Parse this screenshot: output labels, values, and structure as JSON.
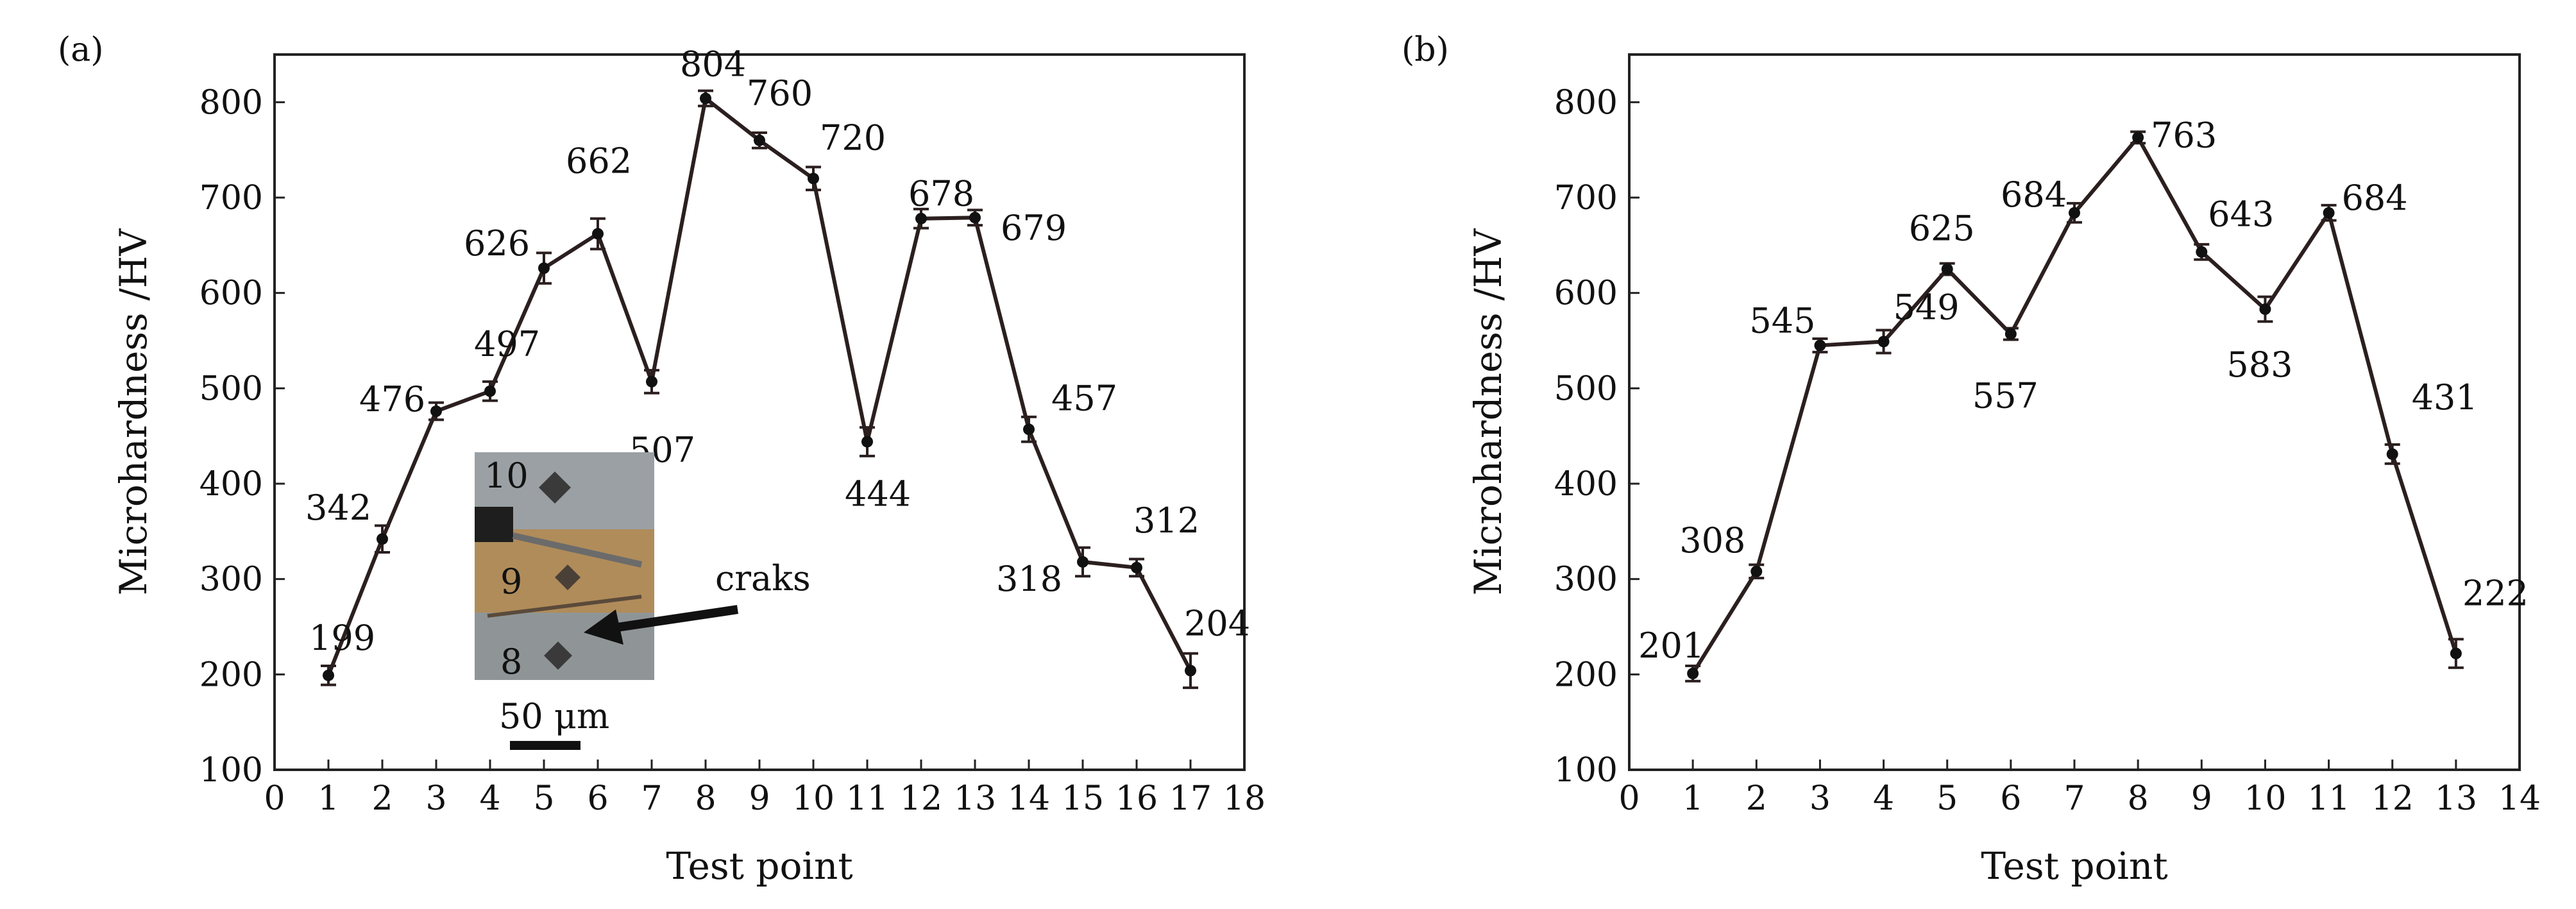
{
  "figure": {
    "panel_a_label": "(a)",
    "panel_b_label": "(b)",
    "inset": {
      "labels": [
        "10",
        "9",
        "8"
      ],
      "annotation": "craks",
      "scale_bar": "50 μm"
    }
  },
  "colors": {
    "line": "#2b1f1f",
    "axis": "#222222",
    "text": "#111111"
  },
  "chart_data": [
    {
      "type": "line",
      "panel": "(a)",
      "xlabel": "Test point",
      "ylabel": "Microhardness /HV",
      "xlim": [
        0,
        18
      ],
      "ylim": [
        100,
        850
      ],
      "xticks": [
        "0",
        "1",
        "2",
        "3",
        "4",
        "5",
        "6",
        "7",
        "8",
        "9",
        "10",
        "11",
        "12",
        "13",
        "14",
        "15",
        "16",
        "17",
        "18"
      ],
      "yticks": [
        "100",
        "200",
        "300",
        "400",
        "500",
        "600",
        "700",
        "800"
      ],
      "x": [
        1,
        2,
        3,
        4,
        5,
        6,
        7,
        8,
        9,
        10,
        11,
        12,
        13,
        14,
        15,
        16,
        17
      ],
      "values": [
        199,
        342,
        476,
        497,
        626,
        662,
        507,
        804,
        760,
        720,
        444,
        678,
        679,
        457,
        318,
        312,
        204
      ],
      "point_labels": [
        "199",
        "342",
        "476",
        "497",
        "626",
        "662",
        "507",
        "804",
        "760",
        "720",
        "444",
        "678",
        "679",
        "457",
        "318",
        "312",
        "204"
      ],
      "error": [
        10,
        14,
        9,
        10,
        16,
        16,
        12,
        8,
        8,
        12,
        15,
        10,
        8,
        13,
        15,
        9,
        18
      ],
      "grid": false
    },
    {
      "type": "line",
      "panel": "(b)",
      "xlabel": "Test point",
      "ylabel": "Microhardness /HV",
      "xlim": [
        0,
        14
      ],
      "ylim": [
        100,
        850
      ],
      "xticks": [
        "0",
        "1",
        "2",
        "3",
        "4",
        "5",
        "6",
        "7",
        "8",
        "9",
        "10",
        "11",
        "12",
        "13",
        "14"
      ],
      "yticks": [
        "100",
        "200",
        "300",
        "400",
        "500",
        "600",
        "700",
        "800"
      ],
      "x": [
        1,
        2,
        3,
        4,
        5,
        6,
        7,
        8,
        9,
        10,
        11,
        12,
        13
      ],
      "values": [
        201,
        308,
        545,
        549,
        625,
        557,
        684,
        763,
        643,
        583,
        684,
        431,
        222
      ],
      "point_labels": [
        "201",
        "308",
        "545",
        "549",
        "625",
        "557",
        "684",
        "763",
        "643",
        "583",
        "684",
        "431",
        "222"
      ],
      "error": [
        8,
        7,
        7,
        12,
        6,
        6,
        10,
        6,
        8,
        13,
        8,
        10,
        15
      ],
      "grid": false
    }
  ]
}
